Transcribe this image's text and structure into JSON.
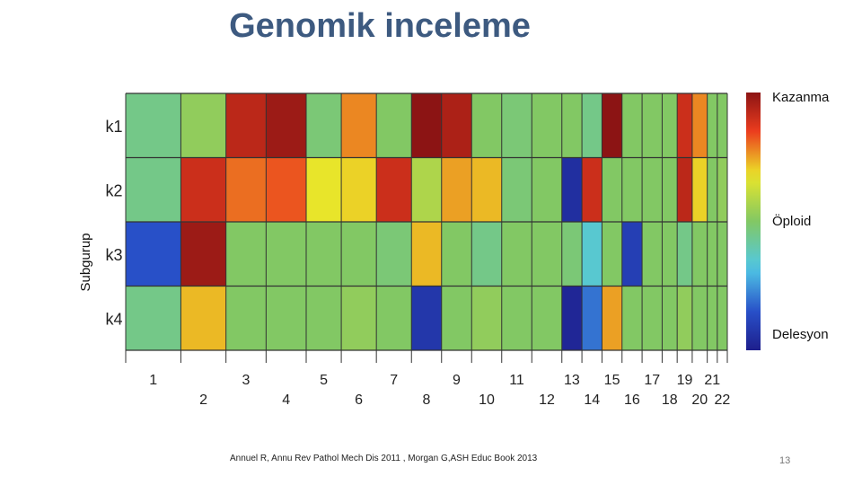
{
  "slide": {
    "title": "Genomik inceleme",
    "credit": "Annuel R, Annu Rev Pathol Mech Dis 2011 ,  Morgan G,ASH Educ Book 2013",
    "page_number": "13"
  },
  "chart_data": {
    "type": "heatmap",
    "ylabel": "Subgurup",
    "rows": [
      "k1",
      "k2",
      "k3",
      "k4"
    ],
    "x_tick_labels_top": [
      "1",
      "3",
      "5",
      "7",
      "9",
      "11",
      "13",
      "15",
      "17",
      "19",
      "21"
    ],
    "x_tick_labels_bottom": [
      "2",
      "4",
      "6",
      "8",
      "10",
      "12",
      "14",
      "16",
      "18",
      "20",
      "22"
    ],
    "colorscale": {
      "type": "jet",
      "min_label": "Delesyon",
      "mid_label": "Öploid",
      "max_label": "Kazanma",
      "range": [
        -1,
        1
      ]
    },
    "chromosome_widths": [
      11,
      9,
      8,
      8,
      7,
      7,
      7,
      6,
      6,
      6,
      6,
      6,
      4,
      4,
      4,
      4,
      4,
      3,
      3,
      3,
      2,
      2
    ],
    "values_note_levels": "-1 = Delesyon, 0 = Öploid, 1 = Kazanma",
    "values": {
      "k1": [
        -0.1,
        0.05,
        0.85,
        0.95,
        -0.05,
        0.55,
        0.0,
        1.0,
        0.9,
        0.0,
        -0.05,
        0.0,
        0.0,
        -0.1,
        1.0,
        0.0,
        0.0,
        0.0,
        0.8,
        0.55,
        0.0,
        0.0
      ],
      "k2": [
        -0.1,
        0.8,
        0.6,
        0.65,
        0.35,
        0.4,
        0.8,
        0.15,
        0.5,
        0.45,
        -0.05,
        0.0,
        -0.9,
        0.8,
        0.0,
        0.0,
        0.0,
        0.0,
        0.85,
        0.4,
        0.0,
        0.05
      ],
      "k3": [
        -0.7,
        0.95,
        0.0,
        0.0,
        0.0,
        0.0,
        -0.05,
        0.45,
        0.0,
        -0.1,
        0.0,
        0.0,
        -0.05,
        -0.3,
        0.0,
        -0.8,
        0.0,
        0.0,
        -0.1,
        0.0,
        0.0,
        0.0
      ],
      "k4": [
        -0.1,
        0.45,
        0.0,
        0.0,
        0.0,
        0.05,
        0.0,
        -0.85,
        0.0,
        0.05,
        0.0,
        0.0,
        -0.95,
        -0.6,
        0.5,
        0.0,
        0.0,
        0.0,
        0.05,
        0.0,
        0.0,
        0.0
      ]
    }
  }
}
